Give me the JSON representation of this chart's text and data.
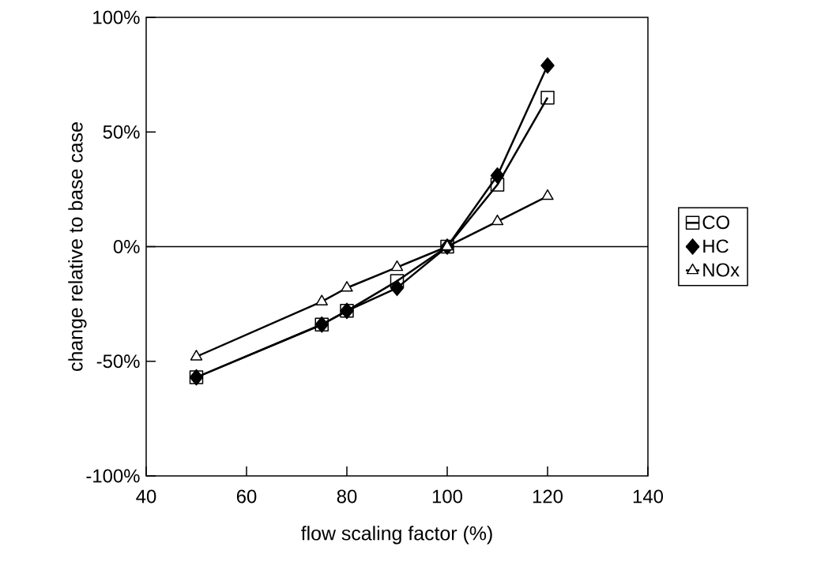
{
  "chart_data": {
    "type": "line",
    "xlabel": "flow  scaling factor (%)",
    "ylabel": "change relative to base case",
    "x": [
      50,
      75,
      80,
      90,
      100,
      110,
      120
    ],
    "series": [
      {
        "name": "CO",
        "color": "#000000",
        "marker": "square",
        "values": [
          -57,
          -34,
          -28,
          -15,
          0,
          27,
          65
        ]
      },
      {
        "name": "HC",
        "color": "#000000",
        "marker": "diamond",
        "values": [
          -57,
          -34,
          -28,
          -18,
          0,
          31,
          79
        ]
      },
      {
        "name": "NOx",
        "color": "#000000",
        "marker": "triangle",
        "values": [
          -48,
          -24,
          -18,
          -9,
          0,
          11,
          22
        ]
      }
    ],
    "xlim": [
      40,
      140
    ],
    "ylim": [
      -100,
      100
    ],
    "xticks": [
      40,
      60,
      80,
      100,
      120,
      140
    ],
    "yticks": [
      {
        "value": -100,
        "label": "-100%"
      },
      {
        "value": -50,
        "label": "-50%"
      },
      {
        "value": 0,
        "label": "0%"
      },
      {
        "value": 50,
        "label": "50%"
      },
      {
        "value": 100,
        "label": "100%"
      }
    ],
    "ref_lines": [
      {
        "axis": "y",
        "value": 0,
        "color": "#000000"
      }
    ],
    "legend": "right",
    "grid": false,
    "line_style": "solid"
  }
}
